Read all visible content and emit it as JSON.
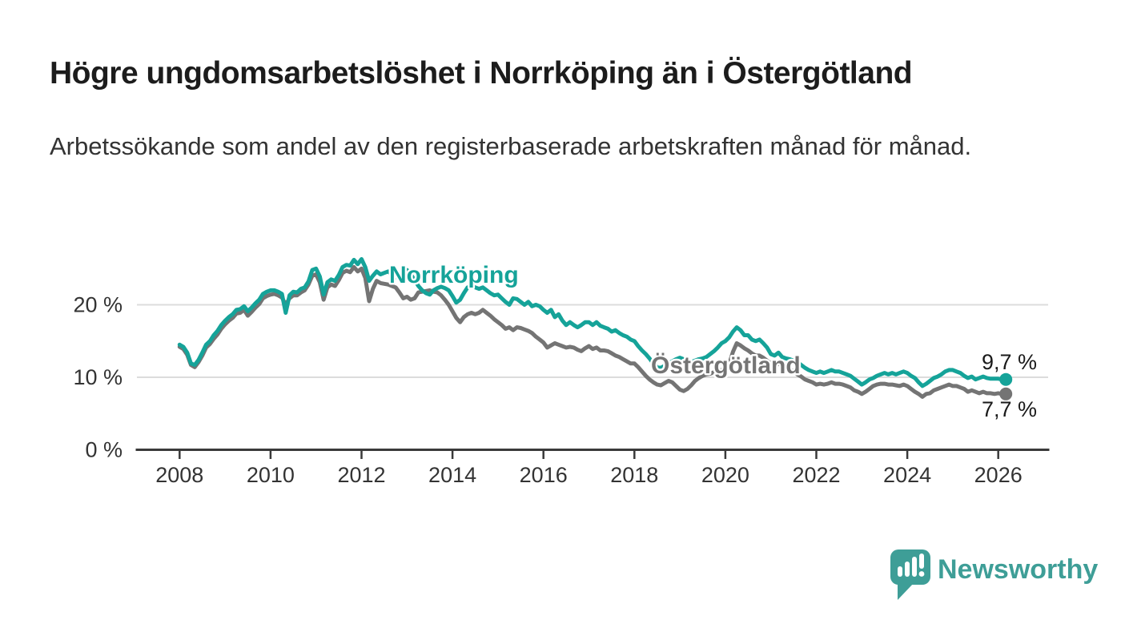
{
  "header": {
    "title": "Högre ungdomsarbetslöshet i Norrköping än i Östergötland",
    "subtitle": "Arbetssökande som andel av den registerbaserade arbetskraften månad för månad."
  },
  "branding": {
    "logo_text": "Newsworthy",
    "logo_color": "#3e9e97"
  },
  "chart_data": {
    "type": "line",
    "title": "Högre ungdomsarbetslöshet i Norrköping än i Östergötland",
    "subtitle": "Arbetssökande som andel av den registerbaserade arbetskraften månad för månad.",
    "xlabel": "",
    "ylabel": "",
    "grid": "horizontal",
    "legend_position": "inline-labels",
    "xlim": [
      2007.1,
      2027.1
    ],
    "ylim": [
      0,
      27.5
    ],
    "x_start_year": 2008,
    "x_start_month": 1,
    "points_per_year": 12,
    "x_end": "2026-03",
    "x_ticks": [
      2008,
      2010,
      2012,
      2014,
      2016,
      2018,
      2020,
      2022,
      2024,
      2026
    ],
    "y_ticks": [
      {
        "value": 20,
        "label": "20 %"
      },
      {
        "value": 10,
        "label": "10 %"
      },
      {
        "value": 0,
        "label": "0 %"
      }
    ],
    "series": [
      {
        "name": "Norrköping",
        "color": "#15a399",
        "end_label": "9,7 %",
        "latest_value": 9.7,
        "values": [
          14.5,
          14.2,
          13.4,
          11.9,
          11.7,
          12.4,
          13.4,
          14.5,
          15.0,
          15.8,
          16.4,
          17.2,
          17.8,
          18.3,
          18.7,
          19.3,
          19.4,
          19.8,
          19.1,
          19.6,
          20.2,
          20.7,
          21.5,
          21.8,
          22.0,
          22.0,
          21.8,
          21.5,
          18.9,
          21.3,
          21.8,
          21.7,
          22.2,
          22.4,
          23.2,
          24.8,
          25.0,
          23.9,
          21.4,
          23.1,
          23.5,
          23.3,
          24.1,
          25.2,
          25.5,
          25.4,
          26.2,
          25.6,
          26.3,
          25.2,
          23.3,
          24.0,
          24.6,
          24.2,
          24.4,
          24.6,
          24.2,
          23.8,
          24.0,
          24.4,
          24.8,
          24.2,
          23.4,
          22.6,
          22.0,
          21.6,
          21.4,
          22.0,
          22.3,
          22.5,
          22.3,
          22.0,
          21.2,
          20.3,
          20.7,
          21.6,
          22.4,
          22.6,
          22.4,
          22.2,
          22.4,
          22.0,
          21.6,
          21.3,
          21.4,
          20.9,
          20.4,
          20.0,
          20.9,
          20.8,
          20.4,
          20.0,
          20.4,
          19.8,
          20.0,
          19.8,
          19.3,
          18.9,
          19.3,
          18.3,
          18.7,
          17.8,
          17.2,
          17.6,
          17.2,
          16.9,
          17.2,
          17.6,
          17.6,
          17.2,
          17.6,
          17.1,
          16.9,
          16.7,
          16.3,
          16.5,
          16.1,
          15.8,
          15.6,
          15.2,
          15.0,
          14.3,
          13.7,
          13.2,
          12.6,
          11.9,
          11.4,
          11.3,
          11.6,
          11.9,
          12.2,
          12.5,
          12.7,
          12.5,
          12.2,
          12.1,
          12.3,
          12.5,
          12.6,
          12.8,
          13.2,
          13.6,
          14.1,
          14.7,
          15.0,
          15.5,
          16.3,
          16.9,
          16.5,
          15.8,
          15.8,
          15.2,
          15.0,
          15.2,
          14.7,
          14.1,
          13.2,
          13.0,
          13.4,
          12.8,
          12.6,
          12.5,
          12.3,
          12.1,
          11.7,
          11.3,
          11.0,
          10.8,
          10.6,
          10.8,
          10.6,
          10.8,
          11.0,
          10.8,
          10.8,
          10.6,
          10.4,
          10.2,
          9.8,
          9.4,
          9.0,
          9.3,
          9.7,
          9.9,
          10.2,
          10.4,
          10.6,
          10.4,
          10.6,
          10.4,
          10.6,
          10.8,
          10.6,
          10.2,
          9.9,
          9.3,
          8.8,
          9.1,
          9.5,
          9.9,
          10.1,
          10.4,
          10.8,
          11.0,
          11.0,
          10.8,
          10.6,
          10.2,
          9.9,
          10.1,
          9.7,
          9.9,
          10.1,
          9.9,
          9.8,
          9.8,
          9.8,
          9.7,
          9.7
        ]
      },
      {
        "name": "Östergötland",
        "color": "#747474",
        "end_label": "7,7 %",
        "latest_value": 7.7,
        "values": [
          14.2,
          13.9,
          13.1,
          11.7,
          11.4,
          12.1,
          13.0,
          14.1,
          14.6,
          15.3,
          15.9,
          16.7,
          17.3,
          17.8,
          18.2,
          18.8,
          18.9,
          19.3,
          18.5,
          19.0,
          19.6,
          20.1,
          20.9,
          21.2,
          21.4,
          21.5,
          21.3,
          21.0,
          20.0,
          20.9,
          21.3,
          21.3,
          21.7,
          22.0,
          22.8,
          24.0,
          24.2,
          23.1,
          20.7,
          22.4,
          22.8,
          22.6,
          23.4,
          24.4,
          24.7,
          24.5,
          25.2,
          24.6,
          25.0,
          23.7,
          20.5,
          22.2,
          23.3,
          23.0,
          22.9,
          22.8,
          22.6,
          22.4,
          21.7,
          20.9,
          21.1,
          20.7,
          20.9,
          21.7,
          21.8,
          21.9,
          22.0,
          21.8,
          21.7,
          21.3,
          20.7,
          20.0,
          19.1,
          18.2,
          17.6,
          18.3,
          18.7,
          18.9,
          18.7,
          18.9,
          19.3,
          18.9,
          18.5,
          18.0,
          17.6,
          17.2,
          16.7,
          16.9,
          16.5,
          16.9,
          16.8,
          16.6,
          16.4,
          16.1,
          15.6,
          15.2,
          14.8,
          14.1,
          14.4,
          14.7,
          14.5,
          14.3,
          14.1,
          14.2,
          14.1,
          13.8,
          13.6,
          14.0,
          14.3,
          13.9,
          14.1,
          13.7,
          13.7,
          13.6,
          13.3,
          13.0,
          12.8,
          12.5,
          12.2,
          11.9,
          11.9,
          11.4,
          10.8,
          10.2,
          9.7,
          9.3,
          9.0,
          8.9,
          9.2,
          9.5,
          9.3,
          8.8,
          8.3,
          8.1,
          8.4,
          8.9,
          9.5,
          9.9,
          10.2,
          10.4,
          10.5,
          10.7,
          10.8,
          11.0,
          11.3,
          11.8,
          13.5,
          14.7,
          14.4,
          14.0,
          13.7,
          13.3,
          13.0,
          13.0,
          12.7,
          12.3,
          11.9,
          11.7,
          11.9,
          11.5,
          11.3,
          11.1,
          10.8,
          10.4,
          10.1,
          9.7,
          9.5,
          9.3,
          9.0,
          9.1,
          9.0,
          9.1,
          9.3,
          9.1,
          9.1,
          9.0,
          8.8,
          8.6,
          8.2,
          8.0,
          7.7,
          8.0,
          8.4,
          8.8,
          9.0,
          9.1,
          9.1,
          9.0,
          9.0,
          8.9,
          8.8,
          9.0,
          8.8,
          8.4,
          8.0,
          7.7,
          7.3,
          7.7,
          7.8,
          8.2,
          8.4,
          8.6,
          8.8,
          9.0,
          8.8,
          8.8,
          8.6,
          8.4,
          8.0,
          8.2,
          8.0,
          7.8,
          8.0,
          7.8,
          7.8,
          7.7,
          7.8,
          7.7,
          7.7
        ]
      }
    ]
  }
}
